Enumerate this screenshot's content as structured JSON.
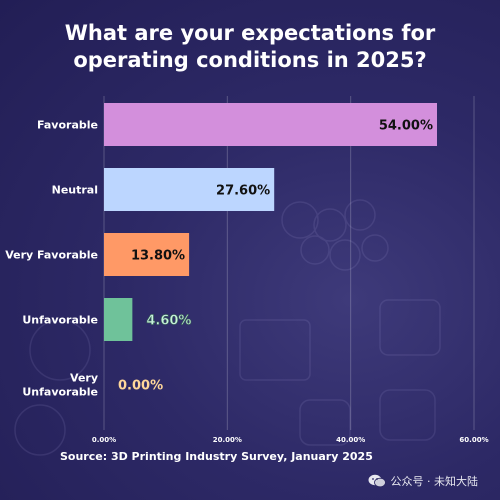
{
  "title_line1": "What are your expectations for",
  "title_line2": "operating conditions in 2025?",
  "source": "Source: 3D Printing Industry Survey, January 2025",
  "watermark": "公众号 · 未知大陆",
  "chart_data": {
    "type": "bar",
    "orientation": "horizontal",
    "title": "What are your expectations for operating conditions in 2025?",
    "categories": [
      "Favorable",
      "Neutral",
      "Very Favorable",
      "Unfavorable",
      "Very Unfavorable"
    ],
    "values": [
      54.0,
      27.6,
      13.8,
      4.6,
      0.0
    ],
    "value_labels": [
      "54.00%",
      "27.60%",
      "13.80%",
      "4.60%",
      "0.00%"
    ],
    "colors": [
      "#d38fdc",
      "#bcd6ff",
      "#ff9966",
      "#6fc29a",
      "#ffd79a"
    ],
    "label_colors": [
      "#111111",
      "#111111",
      "#111111",
      "#c9f0dd",
      "#ffd79a"
    ],
    "xlim": [
      0,
      60
    ],
    "xticks": [
      0,
      20,
      40,
      60
    ],
    "xtick_labels": [
      "0.00%",
      "20.00%",
      "40.00%",
      "60.00%"
    ],
    "xlabel": "",
    "ylabel": "",
    "grid": true,
    "legend": "none"
  }
}
